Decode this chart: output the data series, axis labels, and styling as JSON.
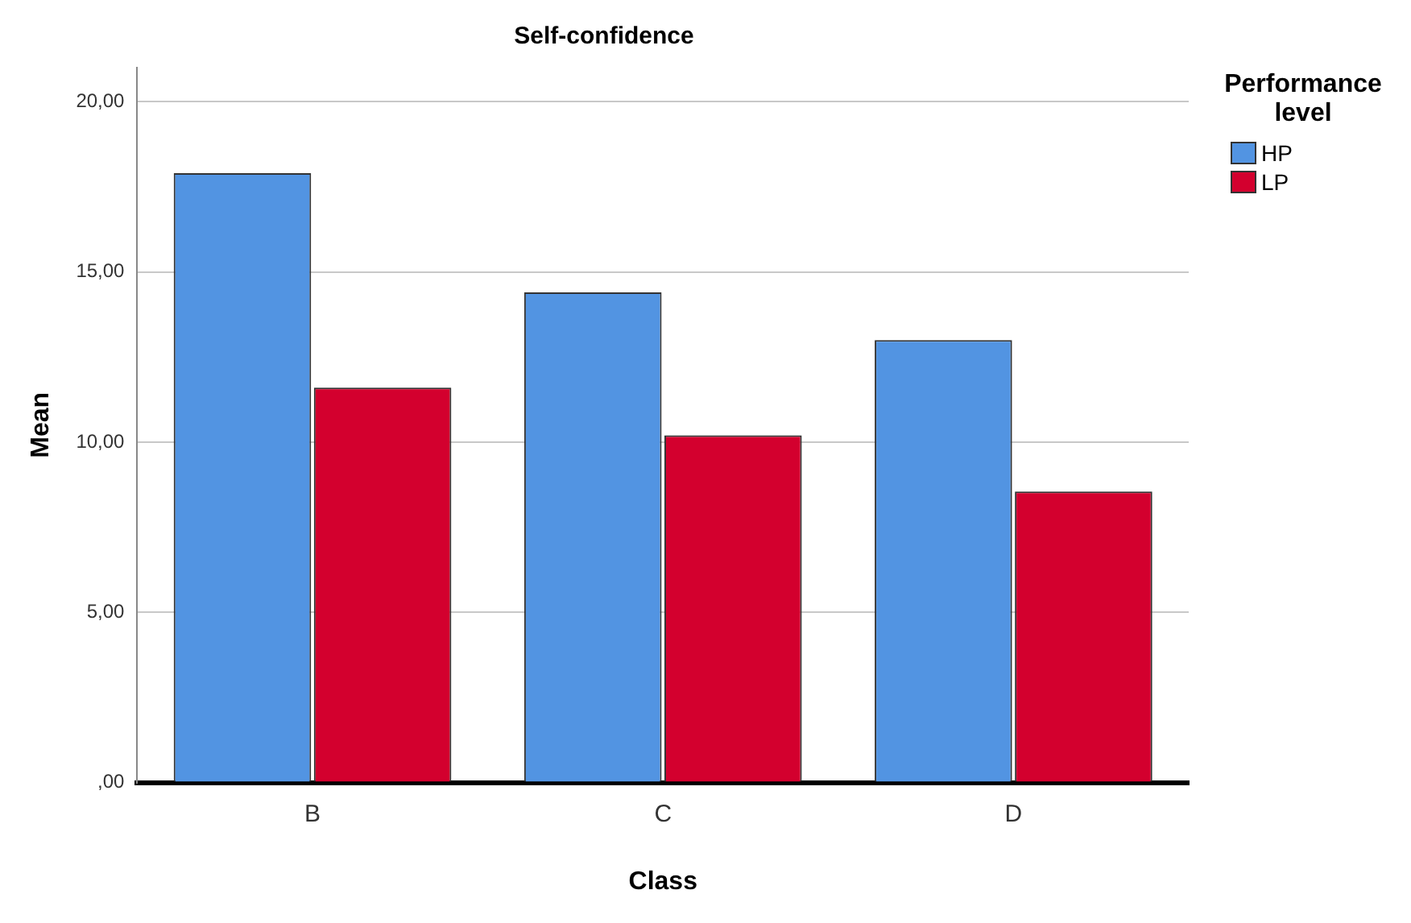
{
  "chart_data": {
    "type": "bar",
    "title": "Self-confidence",
    "xlabel": "Class",
    "ylabel": "Mean",
    "legend_title": "Performance level",
    "categories": [
      "B",
      "C",
      "D"
    ],
    "series": [
      {
        "name": "HP",
        "color": "#5294e2",
        "values": [
          17.9,
          14.4,
          13.0
        ]
      },
      {
        "name": "LP",
        "color": "#d3002e",
        "values": [
          11.6,
          10.2,
          8.55
        ]
      }
    ],
    "ylim": [
      0,
      21
    ],
    "yticks": [
      {
        "value": 0,
        "label": ",00"
      },
      {
        "value": 5,
        "label": "5,00"
      },
      {
        "value": 10,
        "label": "10,00"
      },
      {
        "value": 15,
        "label": "15,00"
      },
      {
        "value": 20,
        "label": "20,00"
      }
    ],
    "grid": "y",
    "legend": "top right"
  }
}
